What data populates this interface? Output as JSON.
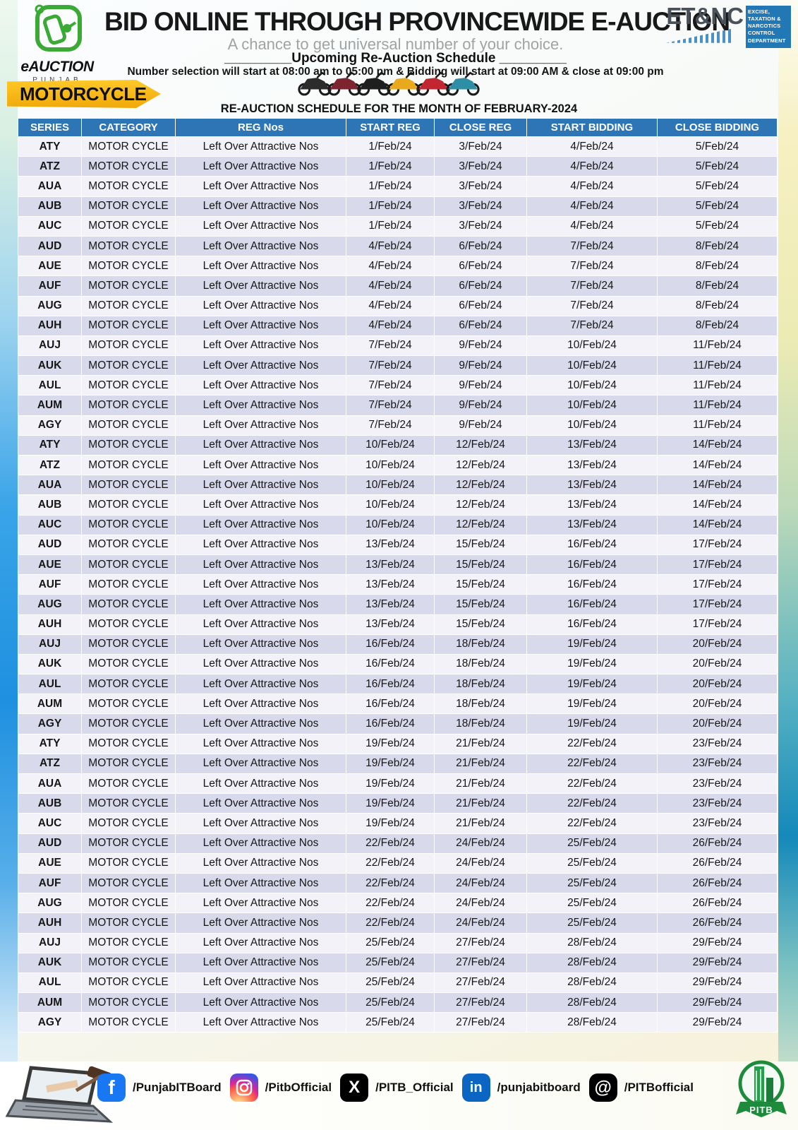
{
  "colors": {
    "header-blue": "#2e75b6",
    "row-light": "#f2f2f8",
    "row-alt": "#d9d9ec",
    "badge-gold": "#ffb70f"
  },
  "header": {
    "title": "BID ONLINE THROUGH PROVINCEWIDE E-AUCTION",
    "subtitle": "A chance to get universal number of your choice.",
    "schedule_line": "_________Upcoming Re-Auction Schedule _________",
    "notice": "Number selection will start at 08:00 am to 05:00 pm & Bidding will start at 09:00 AM & close at 09:00 pm",
    "eauction_logo": {
      "wordmark": "eAUCTION",
      "region": "PUNJAB"
    },
    "etnc_logo": {
      "acronym": "ET&NC",
      "department": "EXCISE, TAXATION & NARCOTICS CONTROL DEPARTMENT"
    }
  },
  "badge": {
    "label": "MOTORCYCLE"
  },
  "section_title": "RE-AUCTION SCHEDULE FOR THE MONTH OF FEBRUARY-2024",
  "bikes": {
    "colors": [
      "#2b2b2b",
      "#7d2430",
      "#1f1f1f",
      "#e9a91c",
      "#c22631",
      "#2e8ea6"
    ]
  },
  "table": {
    "columns": [
      "SERIES",
      "CATEGORY",
      "REG Nos",
      "START REG",
      "CLOSE REG",
      "START BIDDING",
      "CLOSE BIDDING"
    ],
    "rows": [
      [
        "ATY",
        "MOTOR CYCLE",
        "Left Over Attractive Nos",
        "1/Feb/24",
        "3/Feb/24",
        "4/Feb/24",
        "5/Feb/24"
      ],
      [
        "ATZ",
        "MOTOR CYCLE",
        "Left Over Attractive Nos",
        "1/Feb/24",
        "3/Feb/24",
        "4/Feb/24",
        "5/Feb/24"
      ],
      [
        "AUA",
        "MOTOR CYCLE",
        "Left Over Attractive Nos",
        "1/Feb/24",
        "3/Feb/24",
        "4/Feb/24",
        "5/Feb/24"
      ],
      [
        "AUB",
        "MOTOR CYCLE",
        "Left Over Attractive Nos",
        "1/Feb/24",
        "3/Feb/24",
        "4/Feb/24",
        "5/Feb/24"
      ],
      [
        "AUC",
        "MOTOR CYCLE",
        "Left Over Attractive Nos",
        "1/Feb/24",
        "3/Feb/24",
        "4/Feb/24",
        "5/Feb/24"
      ],
      [
        "AUD",
        "MOTOR CYCLE",
        "Left Over Attractive Nos",
        "4/Feb/24",
        "6/Feb/24",
        "7/Feb/24",
        "8/Feb/24"
      ],
      [
        "AUE",
        "MOTOR CYCLE",
        "Left Over Attractive Nos",
        "4/Feb/24",
        "6/Feb/24",
        "7/Feb/24",
        "8/Feb/24"
      ],
      [
        "AUF",
        "MOTOR CYCLE",
        "Left Over Attractive Nos",
        "4/Feb/24",
        "6/Feb/24",
        "7/Feb/24",
        "8/Feb/24"
      ],
      [
        "AUG",
        "MOTOR CYCLE",
        "Left Over Attractive Nos",
        "4/Feb/24",
        "6/Feb/24",
        "7/Feb/24",
        "8/Feb/24"
      ],
      [
        "AUH",
        "MOTOR CYCLE",
        "Left Over Attractive Nos",
        "4/Feb/24",
        "6/Feb/24",
        "7/Feb/24",
        "8/Feb/24"
      ],
      [
        "AUJ",
        "MOTOR CYCLE",
        "Left Over Attractive Nos",
        "7/Feb/24",
        "9/Feb/24",
        "10/Feb/24",
        "11/Feb/24"
      ],
      [
        "AUK",
        "MOTOR CYCLE",
        "Left Over Attractive Nos",
        "7/Feb/24",
        "9/Feb/24",
        "10/Feb/24",
        "11/Feb/24"
      ],
      [
        "AUL",
        "MOTOR CYCLE",
        "Left Over Attractive Nos",
        "7/Feb/24",
        "9/Feb/24",
        "10/Feb/24",
        "11/Feb/24"
      ],
      [
        "AUM",
        "MOTOR CYCLE",
        "Left Over Attractive Nos",
        "7/Feb/24",
        "9/Feb/24",
        "10/Feb/24",
        "11/Feb/24"
      ],
      [
        "AGY",
        "MOTOR CYCLE",
        "Left Over Attractive Nos",
        "7/Feb/24",
        "9/Feb/24",
        "10/Feb/24",
        "11/Feb/24"
      ],
      [
        "ATY",
        "MOTOR CYCLE",
        "Left Over Attractive Nos",
        "10/Feb/24",
        "12/Feb/24",
        "13/Feb/24",
        "14/Feb/24"
      ],
      [
        "ATZ",
        "MOTOR CYCLE",
        "Left Over Attractive Nos",
        "10/Feb/24",
        "12/Feb/24",
        "13/Feb/24",
        "14/Feb/24"
      ],
      [
        "AUA",
        "MOTOR CYCLE",
        "Left Over Attractive Nos",
        "10/Feb/24",
        "12/Feb/24",
        "13/Feb/24",
        "14/Feb/24"
      ],
      [
        "AUB",
        "MOTOR CYCLE",
        "Left Over Attractive Nos",
        "10/Feb/24",
        "12/Feb/24",
        "13/Feb/24",
        "14/Feb/24"
      ],
      [
        "AUC",
        "MOTOR CYCLE",
        "Left Over Attractive Nos",
        "10/Feb/24",
        "12/Feb/24",
        "13/Feb/24",
        "14/Feb/24"
      ],
      [
        "AUD",
        "MOTOR CYCLE",
        "Left Over Attractive Nos",
        "13/Feb/24",
        "15/Feb/24",
        "16/Feb/24",
        "17/Feb/24"
      ],
      [
        "AUE",
        "MOTOR CYCLE",
        "Left Over Attractive Nos",
        "13/Feb/24",
        "15/Feb/24",
        "16/Feb/24",
        "17/Feb/24"
      ],
      [
        "AUF",
        "MOTOR CYCLE",
        "Left Over Attractive Nos",
        "13/Feb/24",
        "15/Feb/24",
        "16/Feb/24",
        "17/Feb/24"
      ],
      [
        "AUG",
        "MOTOR CYCLE",
        "Left Over Attractive Nos",
        "13/Feb/24",
        "15/Feb/24",
        "16/Feb/24",
        "17/Feb/24"
      ],
      [
        "AUH",
        "MOTOR CYCLE",
        "Left Over Attractive Nos",
        "13/Feb/24",
        "15/Feb/24",
        "16/Feb/24",
        "17/Feb/24"
      ],
      [
        "AUJ",
        "MOTOR CYCLE",
        "Left Over Attractive Nos",
        "16/Feb/24",
        "18/Feb/24",
        "19/Feb/24",
        "20/Feb/24"
      ],
      [
        "AUK",
        "MOTOR CYCLE",
        "Left Over Attractive Nos",
        "16/Feb/24",
        "18/Feb/24",
        "19/Feb/24",
        "20/Feb/24"
      ],
      [
        "AUL",
        "MOTOR CYCLE",
        "Left Over Attractive Nos",
        "16/Feb/24",
        "18/Feb/24",
        "19/Feb/24",
        "20/Feb/24"
      ],
      [
        "AUM",
        "MOTOR CYCLE",
        "Left Over Attractive Nos",
        "16/Feb/24",
        "18/Feb/24",
        "19/Feb/24",
        "20/Feb/24"
      ],
      [
        "AGY",
        "MOTOR CYCLE",
        "Left Over Attractive Nos",
        "16/Feb/24",
        "18/Feb/24",
        "19/Feb/24",
        "20/Feb/24"
      ],
      [
        "ATY",
        "MOTOR CYCLE",
        "Left Over Attractive Nos",
        "19/Feb/24",
        "21/Feb/24",
        "22/Feb/24",
        "23/Feb/24"
      ],
      [
        "ATZ",
        "MOTOR CYCLE",
        "Left Over Attractive Nos",
        "19/Feb/24",
        "21/Feb/24",
        "22/Feb/24",
        "23/Feb/24"
      ],
      [
        "AUA",
        "MOTOR CYCLE",
        "Left Over Attractive Nos",
        "19/Feb/24",
        "21/Feb/24",
        "22/Feb/24",
        "23/Feb/24"
      ],
      [
        "AUB",
        "MOTOR CYCLE",
        "Left Over Attractive Nos",
        "19/Feb/24",
        "21/Feb/24",
        "22/Feb/24",
        "23/Feb/24"
      ],
      [
        "AUC",
        "MOTOR CYCLE",
        "Left Over Attractive Nos",
        "19/Feb/24",
        "21/Feb/24",
        "22/Feb/24",
        "23/Feb/24"
      ],
      [
        "AUD",
        "MOTOR CYCLE",
        "Left Over Attractive Nos",
        "22/Feb/24",
        "24/Feb/24",
        "25/Feb/24",
        "26/Feb/24"
      ],
      [
        "AUE",
        "MOTOR CYCLE",
        "Left Over Attractive Nos",
        "22/Feb/24",
        "24/Feb/24",
        "25/Feb/24",
        "26/Feb/24"
      ],
      [
        "AUF",
        "MOTOR CYCLE",
        "Left Over Attractive Nos",
        "22/Feb/24",
        "24/Feb/24",
        "25/Feb/24",
        "26/Feb/24"
      ],
      [
        "AUG",
        "MOTOR CYCLE",
        "Left Over Attractive Nos",
        "22/Feb/24",
        "24/Feb/24",
        "25/Feb/24",
        "26/Feb/24"
      ],
      [
        "AUH",
        "MOTOR CYCLE",
        "Left Over Attractive Nos",
        "22/Feb/24",
        "24/Feb/24",
        "25/Feb/24",
        "26/Feb/24"
      ],
      [
        "AUJ",
        "MOTOR CYCLE",
        "Left Over Attractive Nos",
        "25/Feb/24",
        "27/Feb/24",
        "28/Feb/24",
        "29/Feb/24"
      ],
      [
        "AUK",
        "MOTOR CYCLE",
        "Left Over Attractive Nos",
        "25/Feb/24",
        "27/Feb/24",
        "28/Feb/24",
        "29/Feb/24"
      ],
      [
        "AUL",
        "MOTOR CYCLE",
        "Left Over Attractive Nos",
        "25/Feb/24",
        "27/Feb/24",
        "28/Feb/24",
        "29/Feb/24"
      ],
      [
        "AUM",
        "MOTOR CYCLE",
        "Left Over Attractive Nos",
        "25/Feb/24",
        "27/Feb/24",
        "28/Feb/24",
        "29/Feb/24"
      ],
      [
        "AGY",
        "MOTOR CYCLE",
        "Left Over Attractive Nos",
        "25/Feb/24",
        "27/Feb/24",
        "28/Feb/24",
        "29/Feb/24"
      ]
    ]
  },
  "footer": {
    "social": [
      {
        "icon": "facebook-icon",
        "glyph": "f",
        "handle": "/PunjabITBoard"
      },
      {
        "icon": "instagram-icon",
        "glyph": "",
        "handle": "/PitbOfficial"
      },
      {
        "icon": "x-icon",
        "glyph": "X",
        "handle": "/PITB_Official"
      },
      {
        "icon": "linkedin-icon",
        "glyph": "in",
        "handle": "/punjabitboard"
      },
      {
        "icon": "threads-icon",
        "glyph": "@",
        "handle": "/PITBofficial"
      }
    ],
    "pitb_label": "PITB"
  }
}
